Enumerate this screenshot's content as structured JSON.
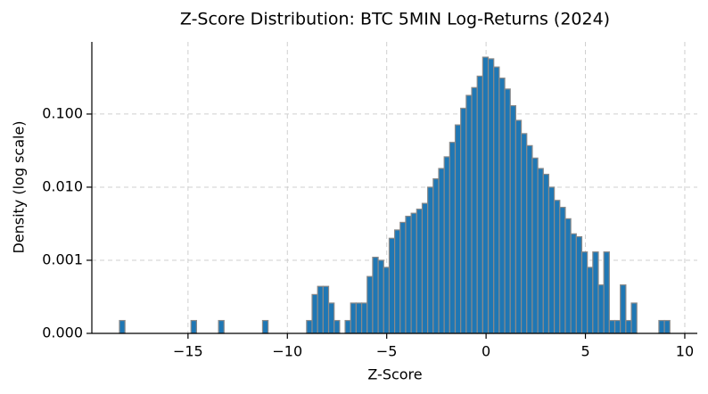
{
  "chart_data": {
    "type": "histogram",
    "title": "Z-Score Distribution: BTC 5MIN Log-Returns (2024)",
    "x_label": "Z-Score",
    "y_label": "Density (log scale)",
    "bins": [
      -18.45,
      -18.173,
      -17.896,
      -17.619,
      -17.342,
      -17.065,
      -16.788,
      -16.511,
      -16.234,
      -15.957,
      -15.68,
      -15.403,
      -15.126,
      -14.849,
      -14.572,
      -14.295,
      -14.018,
      -13.741,
      -13.464,
      -13.187,
      -12.91,
      -12.633,
      -12.356,
      -12.079,
      -11.802,
      -11.525,
      -11.248,
      -10.971,
      -10.694,
      -10.417,
      -10.14,
      -9.863,
      -9.586,
      -9.309,
      -9.032,
      -8.755,
      -8.478,
      -8.201,
      -7.924,
      -7.647,
      -7.37,
      -7.093,
      -6.816,
      -6.539,
      -6.262,
      -5.985,
      -5.708,
      -5.431,
      -5.154,
      -4.877,
      -4.6,
      -4.323,
      -4.046,
      -3.769,
      -3.492,
      -3.215,
      -2.938,
      -2.661,
      -2.384,
      -2.107,
      -1.83,
      -1.553,
      -1.276,
      -0.999,
      -0.722,
      -0.445,
      -0.168,
      0.109,
      0.386,
      0.663,
      0.94,
      1.217,
      1.494,
      1.771,
      2.048,
      2.325,
      2.602,
      2.879,
      3.156,
      3.433,
      3.71,
      3.987,
      4.264,
      4.541,
      4.818,
      5.095,
      5.372,
      5.649,
      5.926,
      6.203,
      6.48,
      6.757,
      7.034,
      7.311,
      7.588,
      7.865,
      8.142,
      8.419,
      8.696,
      8.973,
      9.25
    ],
    "values": [
      0.00015,
      0,
      0,
      0,
      0,
      0,
      0,
      0,
      0,
      0,
      0,
      0,
      0,
      0.00015,
      0,
      0,
      0,
      0,
      0.00015,
      0,
      0,
      0,
      0,
      0,
      0,
      0,
      0.00015,
      0,
      0,
      0,
      0,
      0,
      0,
      0,
      0.00015,
      0.00034,
      0.00044,
      0.00044,
      0.00026,
      0.00015,
      0,
      0.00015,
      0.00026,
      0.00026,
      0.00026,
      0.0006,
      0.0011,
      0.001,
      0.0008,
      0.002,
      0.0026,
      0.0033,
      0.004,
      0.0044,
      0.005,
      0.006,
      0.01,
      0.013,
      0.018,
      0.026,
      0.041,
      0.071,
      0.12,
      0.18,
      0.23,
      0.33,
      0.6,
      0.57,
      0.44,
      0.31,
      0.22,
      0.13,
      0.082,
      0.054,
      0.037,
      0.025,
      0.018,
      0.015,
      0.01,
      0.0066,
      0.0053,
      0.0037,
      0.0023,
      0.0021,
      0.0013,
      0.0008,
      0.0013,
      0.00046,
      0.0013,
      0.00015,
      0.00015,
      0.00046,
      0.00015,
      0.00026,
      0,
      0,
      0,
      0,
      0.00015,
      0.00015
    ],
    "color": "#1f77b4",
    "edge_color": "#8a8a8a",
    "xlim": [
      -19.84,
      10.63
    ],
    "ylim": [
      0.0001,
      0.97
    ],
    "log_y": true,
    "grid": true,
    "xticks": [
      {
        "value": -15,
        "label": "−15"
      },
      {
        "value": -10,
        "label": "−10"
      },
      {
        "value": -5,
        "label": "−5"
      },
      0,
      5,
      10
    ],
    "yticks": [
      {
        "value": 0.0001,
        "label": "0.000"
      },
      {
        "value": 0.001,
        "label": "0.001"
      },
      {
        "value": 0.01,
        "label": "0.010"
      },
      {
        "value": 0.1,
        "label": "0.100"
      }
    ]
  }
}
